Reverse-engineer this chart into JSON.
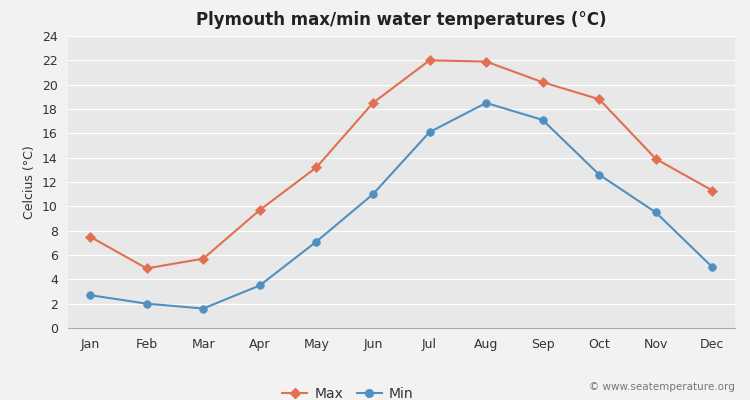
{
  "title": "Plymouth max/min water temperatures (°C)",
  "ylabel": "Celcius (°C)",
  "months": [
    "Jan",
    "Feb",
    "Mar",
    "Apr",
    "May",
    "Jun",
    "Jul",
    "Aug",
    "Sep",
    "Oct",
    "Nov",
    "Dec"
  ],
  "max_temps": [
    7.5,
    4.9,
    5.7,
    9.7,
    13.2,
    18.5,
    22.0,
    21.9,
    20.2,
    18.8,
    13.9,
    11.3
  ],
  "min_temps": [
    2.7,
    2.0,
    1.6,
    3.5,
    7.1,
    11.0,
    16.1,
    18.5,
    17.1,
    12.6,
    9.5,
    5.0
  ],
  "max_color": "#e07050",
  "min_color": "#5090c0",
  "bg_color": "#f2f2f2",
  "plot_bg_color": "#e8e8e8",
  "grid_color": "#ffffff",
  "ylim": [
    0,
    24
  ],
  "yticks": [
    0,
    2,
    4,
    6,
    8,
    10,
    12,
    14,
    16,
    18,
    20,
    22,
    24
  ],
  "watermark": "© www.seatemperature.org",
  "legend_max": "Max",
  "legend_min": "Min",
  "title_fontsize": 12,
  "label_fontsize": 9,
  "tick_fontsize": 9,
  "watermark_fontsize": 7.5
}
